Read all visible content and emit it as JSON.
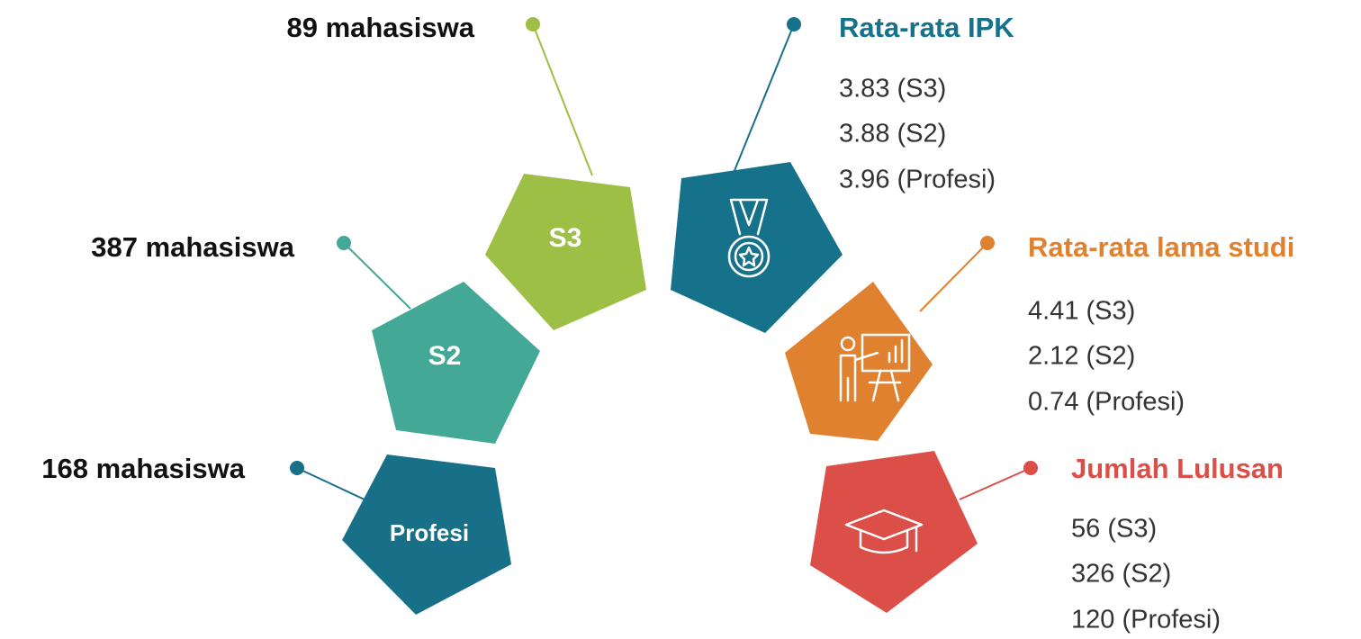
{
  "levels": [
    {
      "name": "S3",
      "count": "89 mahasiswa"
    },
    {
      "name": "S2",
      "count": "387 mahasiswa"
    },
    {
      "name": "Profesi",
      "count": "168 mahasiswa"
    }
  ],
  "stats": [
    {
      "title": "Rata-rata IPK",
      "items": [
        "3.83 (S3)",
        "3.88 (S2)",
        "3.96 (Profesi)"
      ]
    },
    {
      "title": "Rata-rata lama studi",
      "items": [
        "4.41 (S3)",
        "2.12 (S2)",
        "0.74 (Profesi)"
      ]
    },
    {
      "title": "Jumlah Lulusan",
      "items": [
        "56 (S3)",
        "326 (S2)",
        "120 (Profesi)"
      ]
    }
  ]
}
